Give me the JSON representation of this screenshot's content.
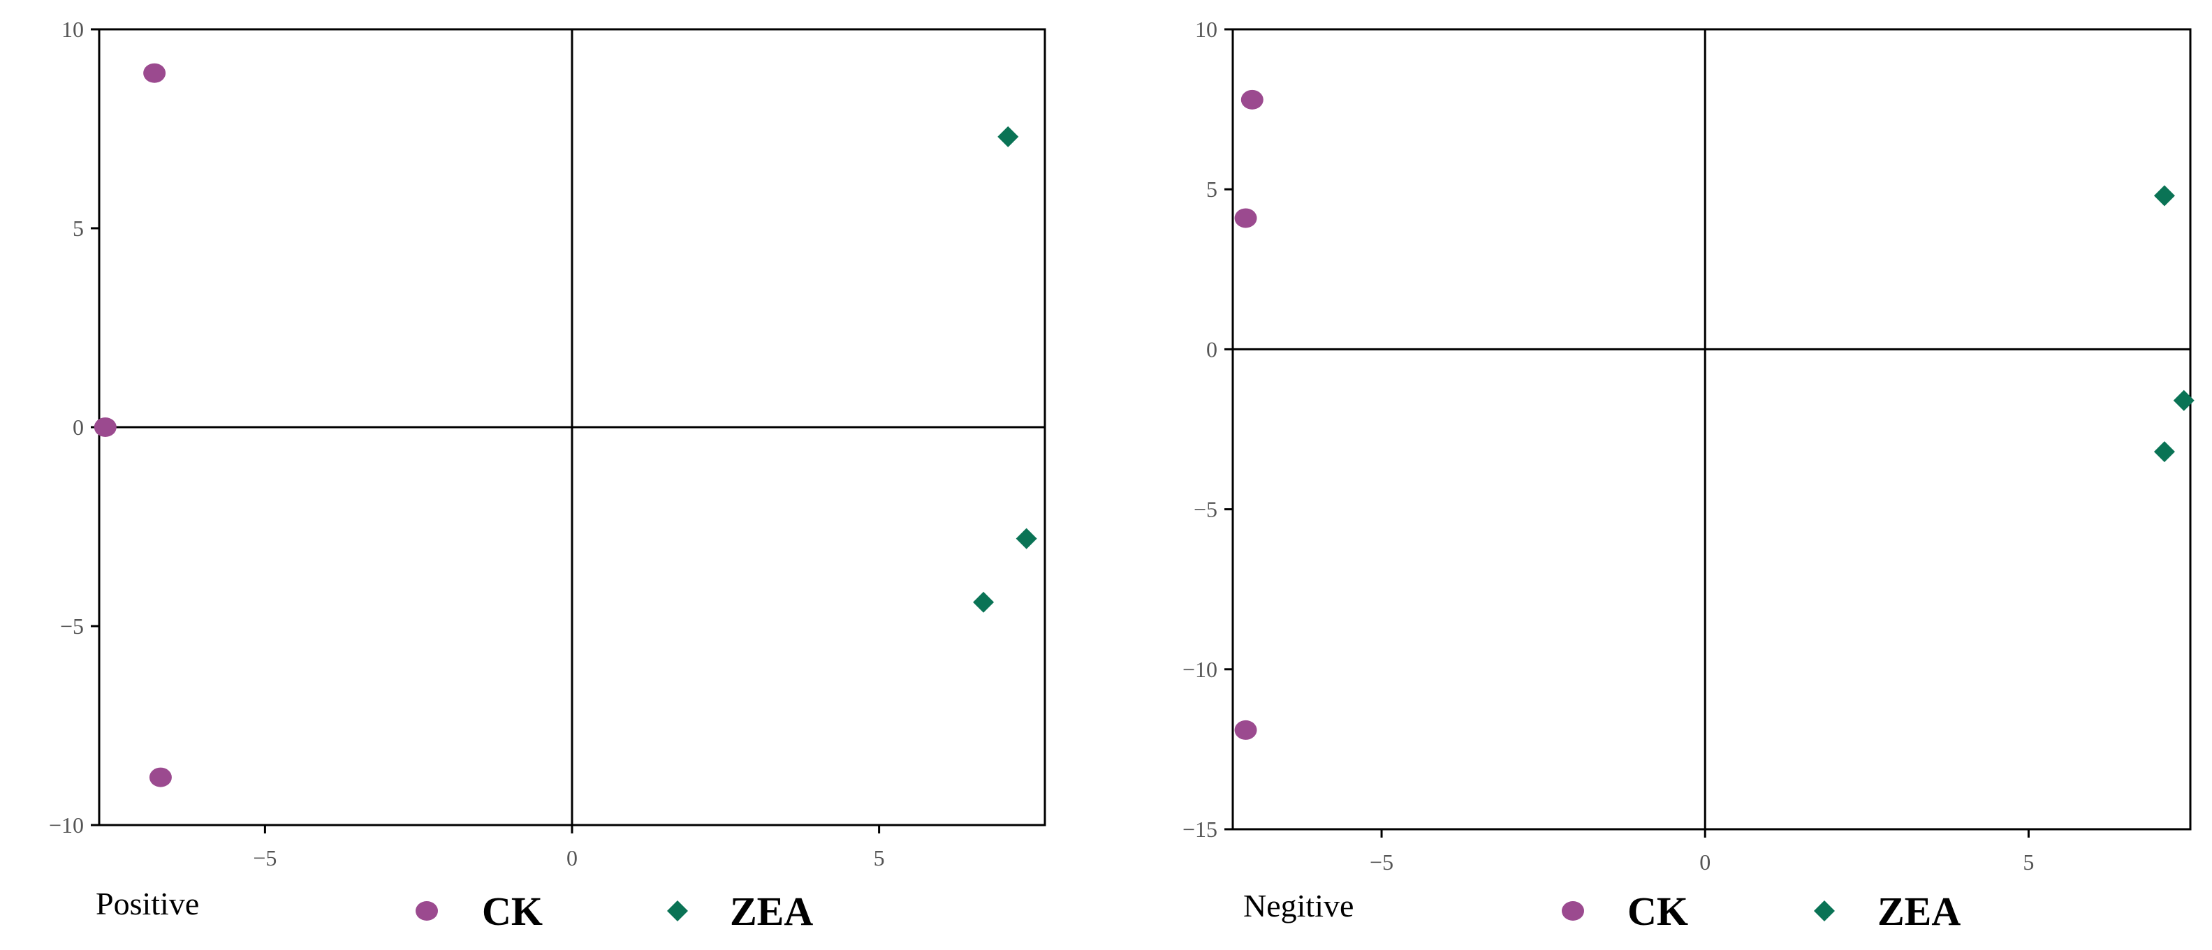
{
  "colors": {
    "ck": "#9b4a8f",
    "zea": "#0a7355"
  },
  "chart_data": [
    {
      "type": "scatter",
      "panel_label": "Positive",
      "xlim": [
        -7.7,
        7.7
      ],
      "ylim": [
        -10,
        10
      ],
      "xticks": [
        -5,
        0,
        5
      ],
      "yticks": [
        -10,
        -5,
        0,
        5,
        10
      ],
      "xtick_labels": [
        "−5",
        "0",
        "5"
      ],
      "ytick_labels": [
        "−10",
        "−5",
        "0",
        "5",
        "10"
      ],
      "zero_lines": true,
      "legend": [
        {
          "label": "CK",
          "marker": "circle",
          "color": "#9b4a8f"
        },
        {
          "label": "ZEA",
          "marker": "diamond",
          "color": "#0a7355"
        }
      ],
      "series": [
        {
          "name": "CK",
          "marker": "circle",
          "color": "#9b4a8f",
          "points": [
            {
              "x": -6.8,
              "y": 8.9
            },
            {
              "x": -7.6,
              "y": 0.0
            },
            {
              "x": -6.7,
              "y": -8.8
            }
          ]
        },
        {
          "name": "ZEA",
          "marker": "diamond",
          "color": "#0a7355",
          "points": [
            {
              "x": 7.1,
              "y": 7.3
            },
            {
              "x": 7.4,
              "y": -2.8
            },
            {
              "x": 6.7,
              "y": -4.4
            }
          ]
        }
      ]
    },
    {
      "type": "scatter",
      "panel_label": "Negitive",
      "xlim": [
        -7.3,
        7.5
      ],
      "ylim": [
        -15,
        10
      ],
      "xticks": [
        -5,
        0,
        5
      ],
      "yticks": [
        -15,
        -10,
        -5,
        0,
        5,
        10
      ],
      "xtick_labels": [
        "−5",
        "0",
        "5"
      ],
      "ytick_labels": [
        "−15",
        "−10",
        "−5",
        "0",
        "5",
        "10"
      ],
      "zero_lines": true,
      "legend": [
        {
          "label": "CK",
          "marker": "circle",
          "color": "#9b4a8f"
        },
        {
          "label": "ZEA",
          "marker": "diamond",
          "color": "#0a7355"
        }
      ],
      "series": [
        {
          "name": "CK",
          "marker": "circle",
          "color": "#9b4a8f",
          "points": [
            {
              "x": -7.0,
              "y": 7.8
            },
            {
              "x": -7.1,
              "y": 4.1
            },
            {
              "x": -7.1,
              "y": -11.9
            }
          ]
        },
        {
          "name": "ZEA",
          "marker": "diamond",
          "color": "#0a7355",
          "points": [
            {
              "x": 7.1,
              "y": 4.8
            },
            {
              "x": 7.4,
              "y": -1.6
            },
            {
              "x": 7.1,
              "y": -3.2
            }
          ]
        }
      ]
    }
  ]
}
